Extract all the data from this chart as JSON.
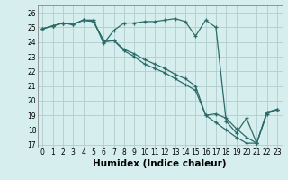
{
  "title": "",
  "xlabel": "Humidex (Indice chaleur)",
  "ylabel": "",
  "xlim": [
    -0.5,
    23.5
  ],
  "ylim": [
    16.8,
    26.5
  ],
  "yticks": [
    17,
    18,
    19,
    20,
    21,
    22,
    23,
    24,
    25,
    26
  ],
  "xticks": [
    0,
    1,
    2,
    3,
    4,
    5,
    6,
    7,
    8,
    9,
    10,
    11,
    12,
    13,
    14,
    15,
    16,
    17,
    18,
    19,
    20,
    21,
    22,
    23
  ],
  "bg_color": "#d6eeee",
  "grid_color": "#b0cccc",
  "line_color": "#2d6b6b",
  "series1_x": [
    0,
    1,
    2,
    3,
    4,
    5,
    6,
    7,
    8,
    9,
    10,
    11,
    12,
    13,
    14,
    15,
    16,
    17,
    18,
    19,
    20,
    21,
    22,
    23
  ],
  "series1_y": [
    24.9,
    25.1,
    25.3,
    25.2,
    25.5,
    25.5,
    23.9,
    24.8,
    25.3,
    25.3,
    25.4,
    25.4,
    25.5,
    25.6,
    25.4,
    24.4,
    25.5,
    25.0,
    18.6,
    17.8,
    18.8,
    17.1,
    19.1,
    19.4
  ],
  "series2_x": [
    0,
    1,
    2,
    3,
    4,
    5,
    6,
    7,
    8,
    9,
    10,
    11,
    12,
    13,
    14,
    15,
    16,
    17,
    18,
    19,
    20,
    21,
    22,
    23
  ],
  "series2_y": [
    24.9,
    25.1,
    25.3,
    25.2,
    25.5,
    25.4,
    24.0,
    24.1,
    23.5,
    23.2,
    22.8,
    22.5,
    22.2,
    21.8,
    21.5,
    21.0,
    19.0,
    19.1,
    18.8,
    18.1,
    17.5,
    17.1,
    19.2,
    19.4
  ],
  "series3_x": [
    0,
    1,
    2,
    3,
    4,
    5,
    6,
    7,
    8,
    9,
    10,
    11,
    12,
    13,
    14,
    15,
    16,
    17,
    18,
    19,
    20,
    21,
    22,
    23
  ],
  "series3_y": [
    24.9,
    25.1,
    25.3,
    25.2,
    25.5,
    25.4,
    24.1,
    24.1,
    23.4,
    23.0,
    22.5,
    22.2,
    21.9,
    21.5,
    21.1,
    20.7,
    19.0,
    18.5,
    18.0,
    17.5,
    17.1,
    17.1,
    19.2,
    19.4
  ],
  "marker": "+",
  "markersize": 3.5,
  "linewidth": 0.9,
  "tick_fontsize": 5.5,
  "label_fontsize": 7.5
}
